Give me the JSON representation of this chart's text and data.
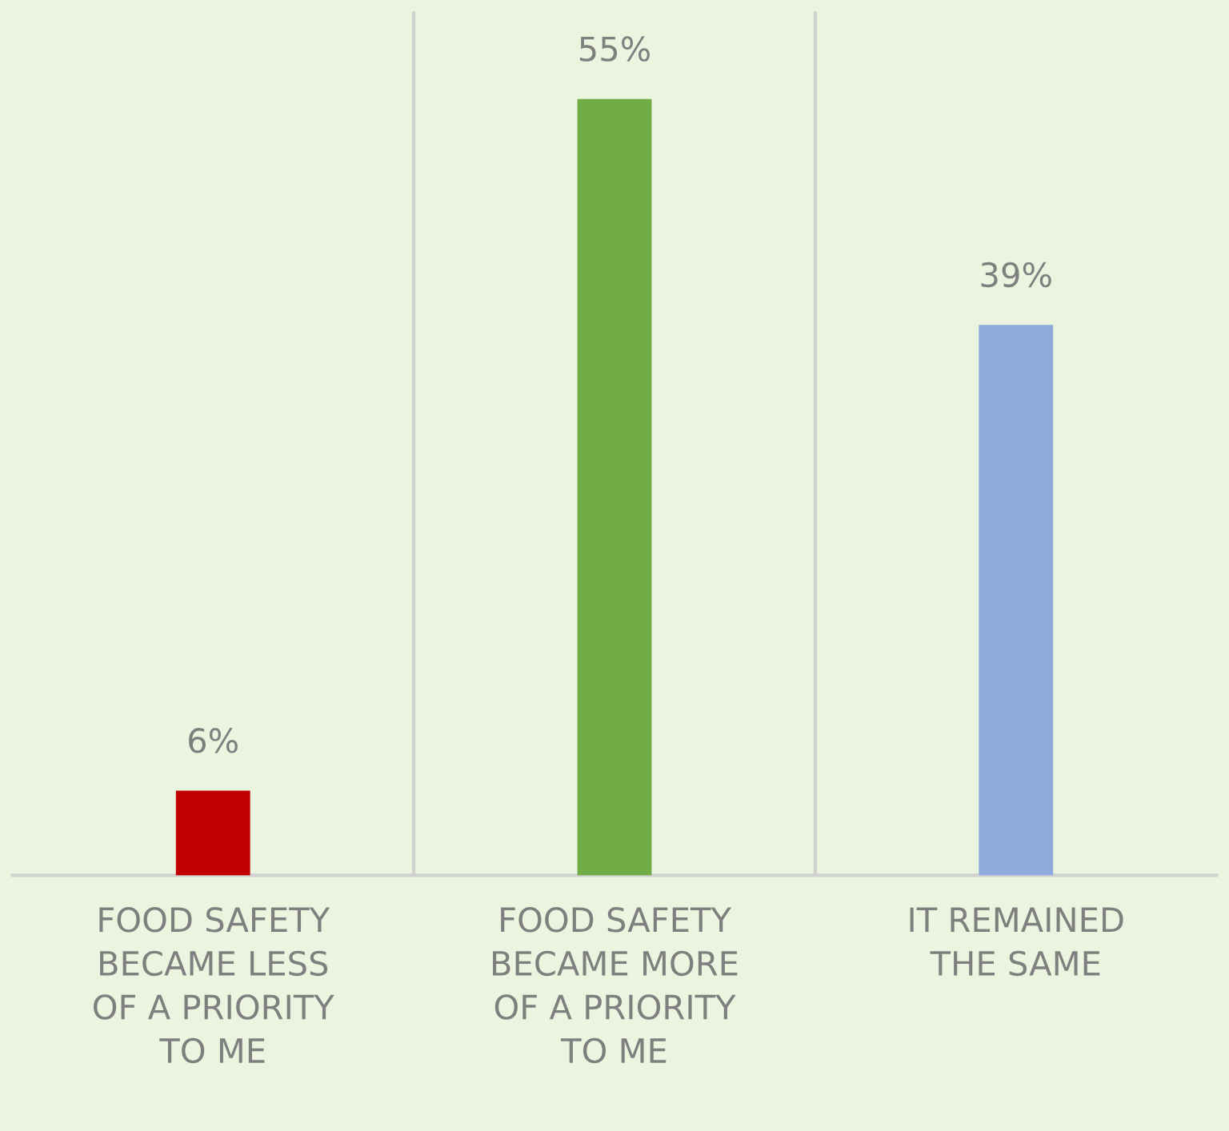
{
  "chart_data": {
    "type": "bar",
    "categories": [
      "FOOD SAFETY\nBECAME LESS\nOF A PRIORITY\nTO ME",
      "FOOD SAFETY\nBECAME MORE\nOF A PRIORITY\nTO ME",
      "IT REMAINED\nTHE SAME"
    ],
    "values": [
      6,
      55,
      39
    ],
    "colors": [
      "#c00000",
      "#70ad47",
      "#8faadc"
    ],
    "value_labels": [
      "6%",
      "55%",
      "39%"
    ],
    "grid": "x"
  }
}
